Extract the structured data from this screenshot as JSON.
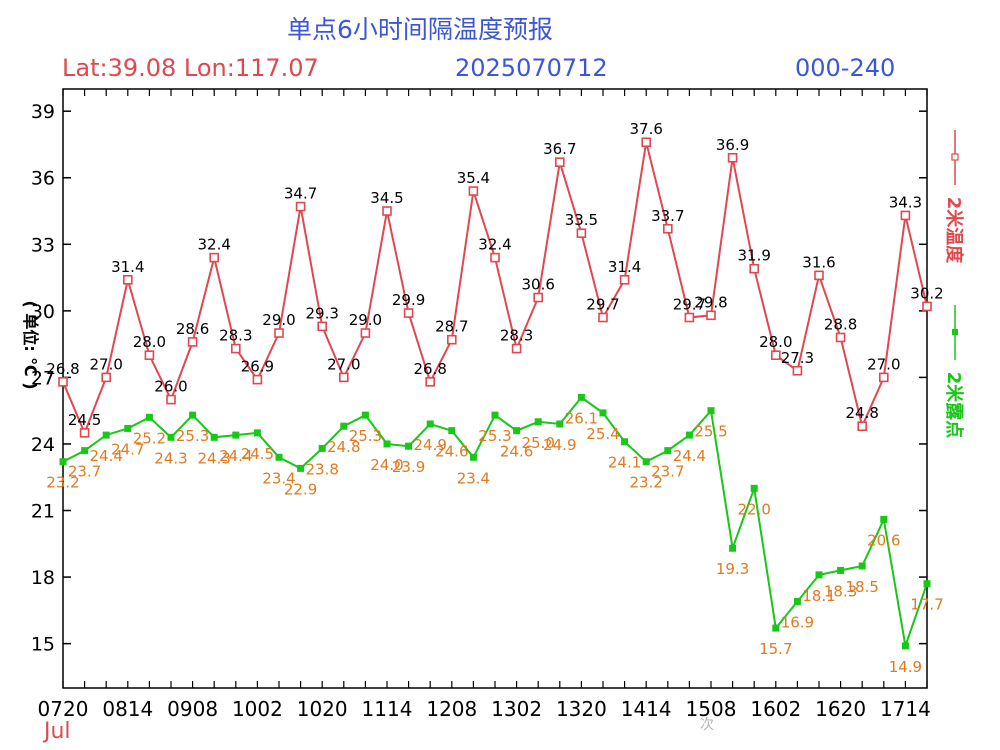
{
  "header": {
    "title": "单点6小时间隔温度预报",
    "location": "Lat:39.08 Lon:117.07",
    "init_time": "2025070712",
    "forecast_range": "000-240"
  },
  "watermark": "次",
  "colors": {
    "temp": "#e0484f",
    "dew": "#18c718",
    "temp_label": "#000000",
    "dew_label": "#e07b1f",
    "title_blue": "#3b56d6",
    "axis": "#000000"
  },
  "chart_data": {
    "type": "line",
    "ylabel": "( 单位: ℃ )",
    "xlabel_sub": "Jul",
    "ylim": [
      13,
      40
    ],
    "yticks": [
      15,
      18,
      21,
      24,
      27,
      30,
      33,
      36,
      39
    ],
    "x": [
      "0720",
      "0802",
      "0808",
      "0814",
      "0820",
      "0902",
      "0908",
      "0914",
      "0920",
      "1002",
      "1008",
      "1014",
      "1020",
      "1102",
      "1108",
      "1114",
      "1120",
      "1202",
      "1208",
      "1214",
      "1220",
      "1302",
      "1308",
      "1314",
      "1320",
      "1402",
      "1408",
      "1414",
      "1420",
      "1502",
      "1508",
      "1514",
      "1520",
      "1602",
      "1608",
      "1614",
      "1620",
      "1702",
      "1708",
      "1714",
      "1720"
    ],
    "xtick_labels": [
      "0720",
      "0814",
      "0908",
      "1002",
      "1020",
      "1114",
      "1208",
      "1302",
      "1320",
      "1414",
      "1508",
      "1602",
      "1620",
      "1714"
    ],
    "series": [
      {
        "name": "2米温度",
        "marker": "open-square",
        "values": [
          26.8,
          24.5,
          27.0,
          31.4,
          28.0,
          26.0,
          28.6,
          32.4,
          28.3,
          26.9,
          29.0,
          34.7,
          29.3,
          27.0,
          29.0,
          34.5,
          29.9,
          26.8,
          28.7,
          35.4,
          32.4,
          28.3,
          30.6,
          36.7,
          33.5,
          29.7,
          31.4,
          37.6,
          33.7,
          29.7,
          29.8,
          36.9,
          31.9,
          28.0,
          27.3,
          31.6,
          28.8,
          24.8,
          27.0,
          34.3,
          30.2
        ]
      },
      {
        "name": "2米露点",
        "marker": "filled-square",
        "values": [
          23.2,
          23.7,
          24.4,
          24.7,
          25.2,
          24.3,
          25.3,
          24.3,
          24.4,
          24.5,
          23.4,
          22.9,
          23.8,
          24.8,
          25.3,
          24.0,
          23.9,
          24.9,
          24.6,
          23.4,
          25.3,
          24.6,
          25.0,
          24.9,
          26.1,
          25.4,
          24.1,
          23.2,
          23.7,
          24.4,
          25.5,
          19.3,
          22.0,
          15.7,
          16.9,
          18.1,
          18.3,
          18.5,
          20.6,
          14.9,
          17.7
        ]
      }
    ]
  }
}
